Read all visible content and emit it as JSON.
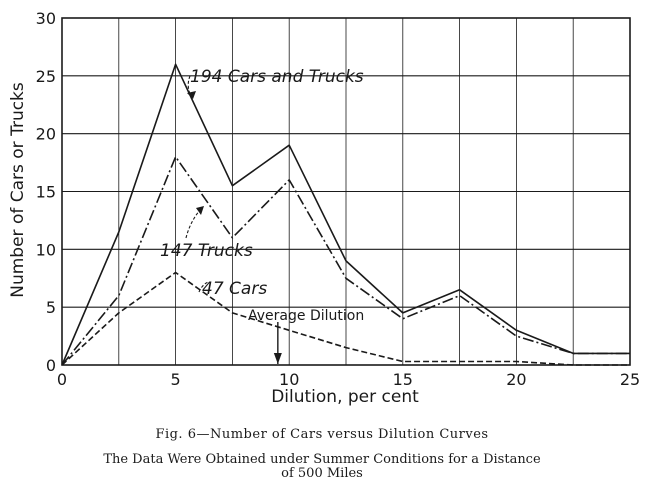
{
  "chart_data": {
    "type": "line",
    "title": "Fig. 6—Number of Cars versus Dilution Curves",
    "subtitle": "The Data Were Obtained under Summer Conditions for a Distance of 500 Miles",
    "xlabel": "Dilution, per cent",
    "ylabel": "Number of Cars or Trucks",
    "xlim": [
      0,
      25
    ],
    "ylim": [
      0,
      30
    ],
    "xticks": [
      0,
      5,
      10,
      15,
      20,
      25
    ],
    "yticks": [
      0,
      5,
      10,
      15,
      20,
      25,
      30
    ],
    "grid": true,
    "x": [
      0,
      2.5,
      5,
      7.5,
      10,
      12.5,
      15,
      17.5,
      20,
      22.5,
      25
    ],
    "series": [
      {
        "name": "194 Cars and Trucks",
        "values": [
          0,
          11.5,
          26,
          15.5,
          19,
          9,
          4.5,
          6.5,
          3,
          1,
          1
        ],
        "style": "solid",
        "color": "#1a1a1a"
      },
      {
        "name": "147 Trucks",
        "values": [
          0,
          6,
          18,
          11,
          16,
          7.5,
          4,
          6,
          2.5,
          1,
          1
        ],
        "style": "dash-dot",
        "color": "#1a1a1a"
      },
      {
        "name": "47 Cars",
        "values": [
          0,
          4.5,
          8,
          4.5,
          3,
          1.5,
          0.3,
          0.3,
          0.3,
          0,
          0
        ],
        "style": "dashed",
        "color": "#1a1a1a"
      }
    ],
    "annotations": {
      "average_dilution_label": "Average Dilution",
      "average_dilution_x": 9.5
    }
  },
  "caption": {
    "title": "Fig. 6—Number of Cars versus Dilution Curves",
    "subtitle_line1": "The Data Were Obtained under Summer Conditions for a Distance",
    "subtitle_line2": "of 500 Miles"
  },
  "colors": {
    "ink": "#1a1a1a",
    "background": "#ffffff"
  }
}
